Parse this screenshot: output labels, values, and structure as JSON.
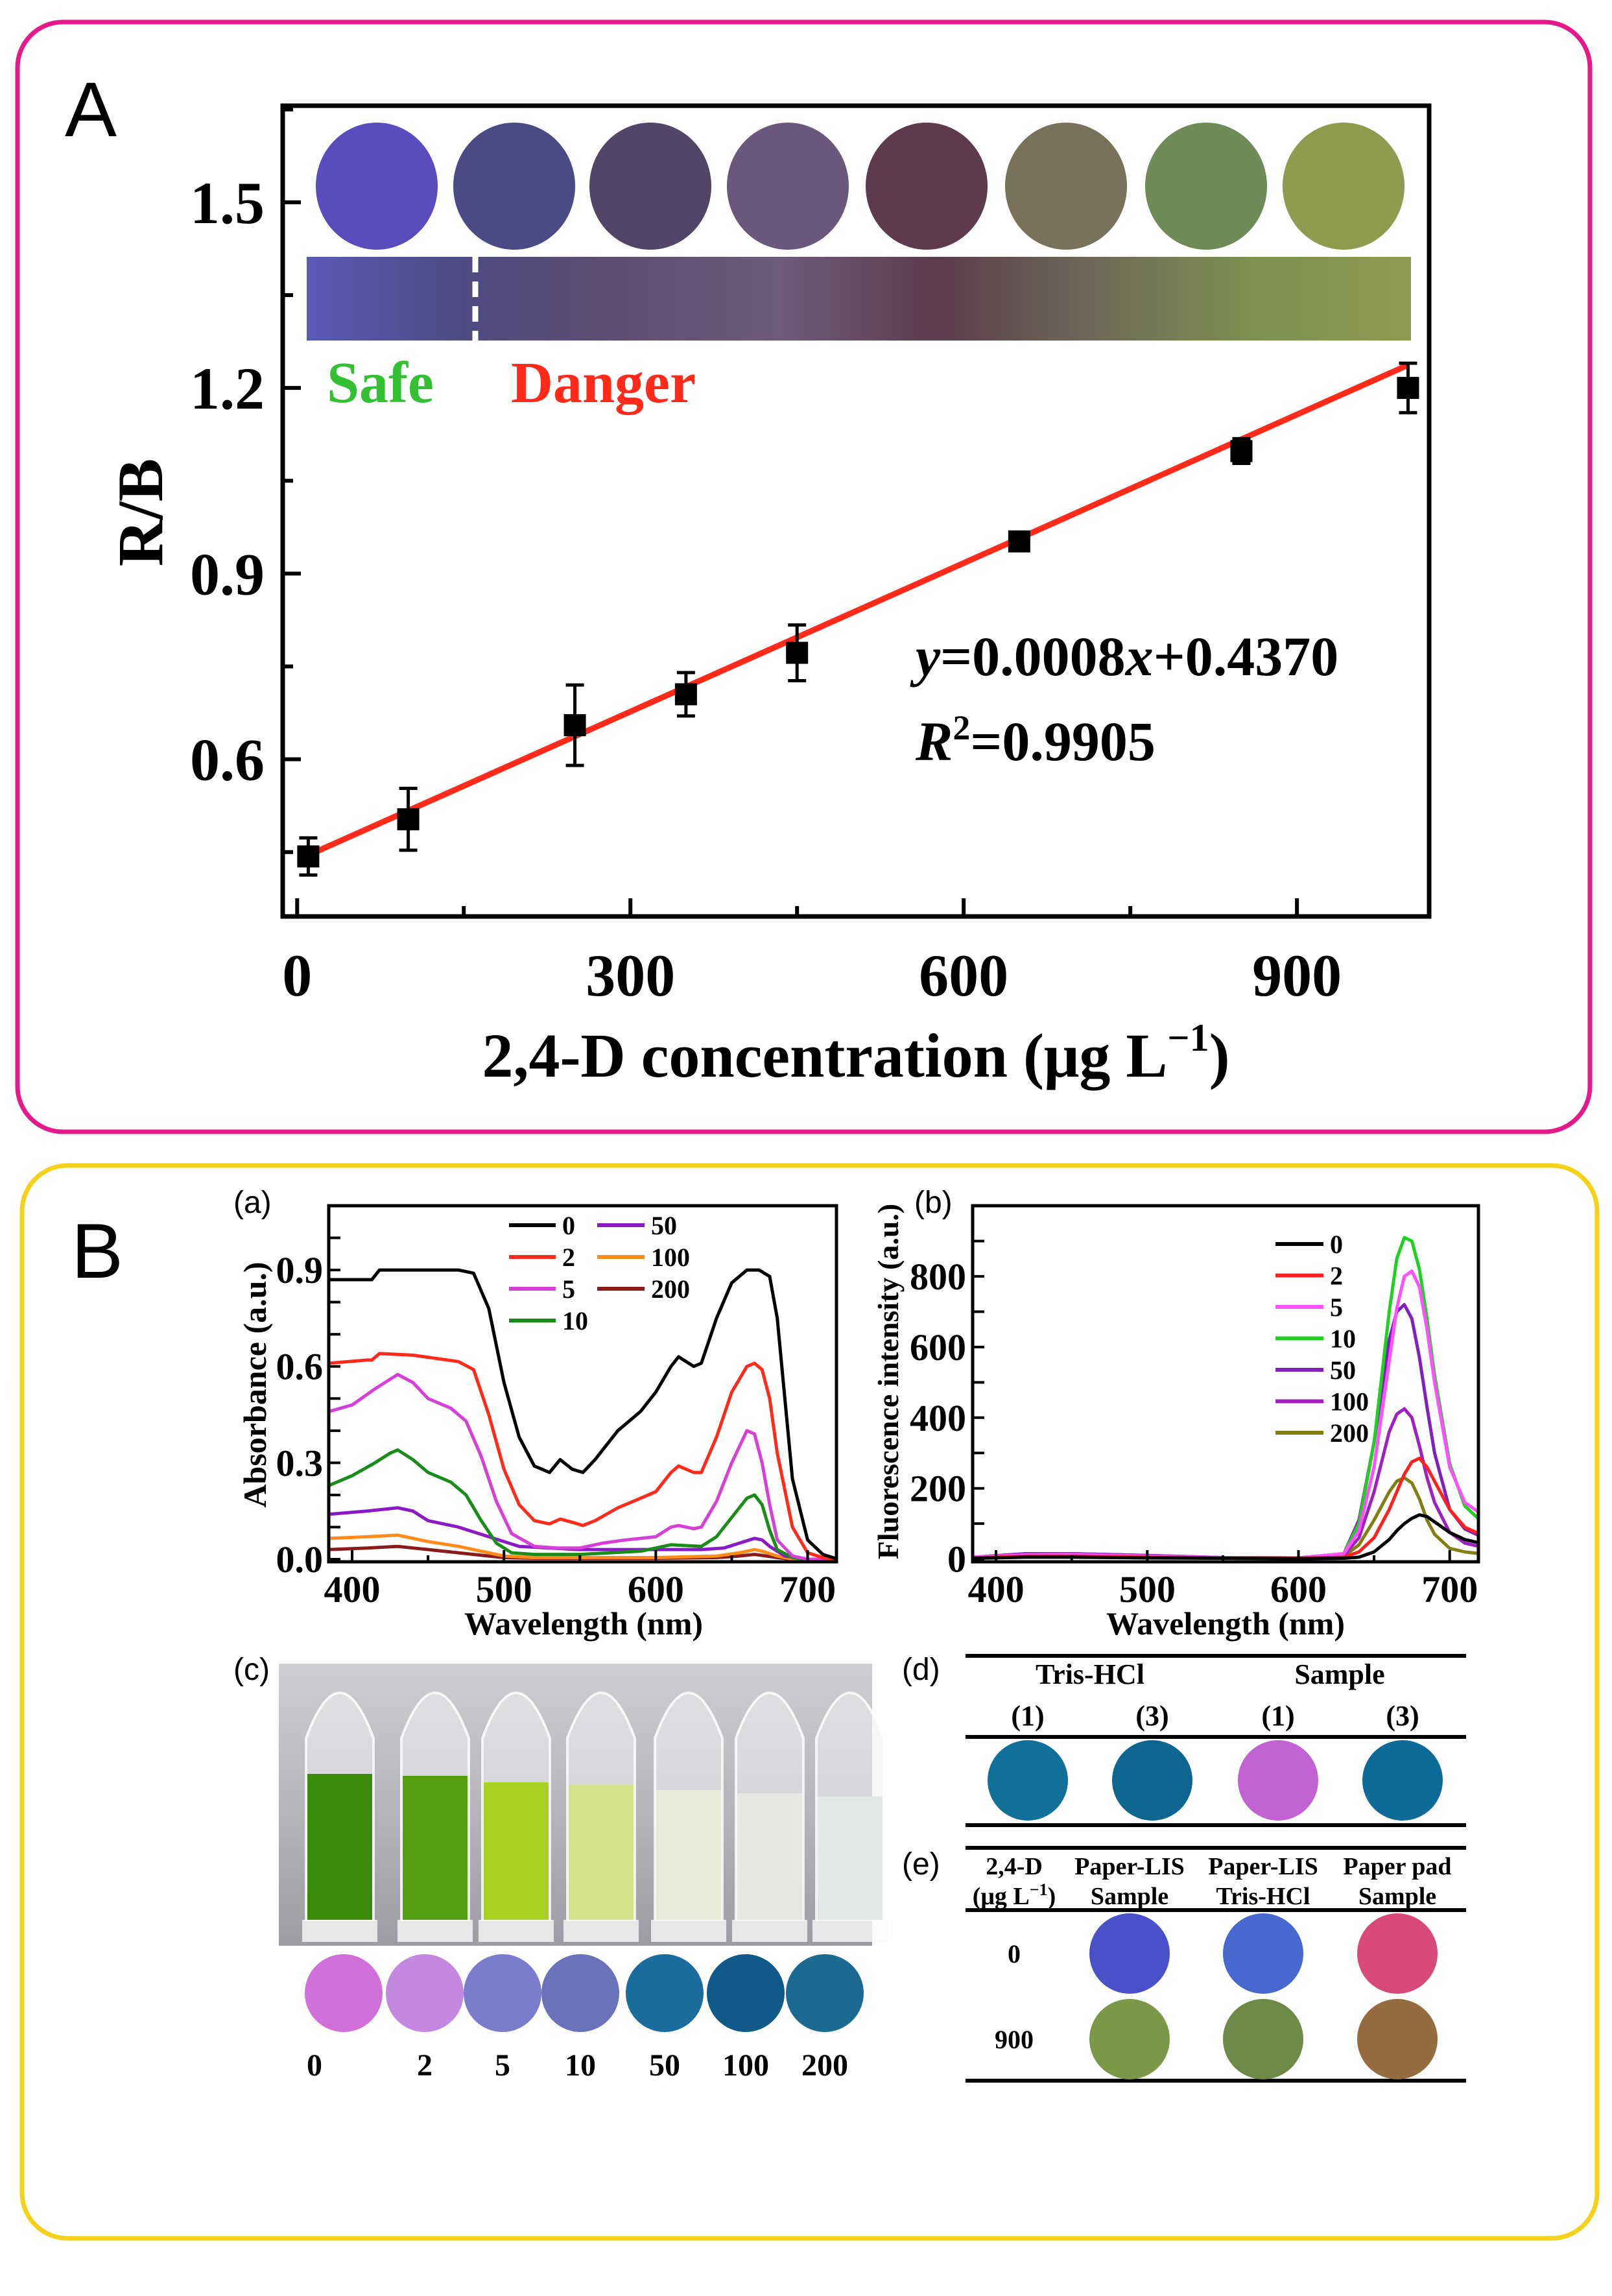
{
  "panel_A": {
    "label": "A"
  },
  "panel_B": {
    "label": "B",
    "sub_a": "(a)",
    "sub_b": "(b)",
    "sub_c": "(c)",
    "sub_d": "(d)",
    "sub_e": "(e)"
  },
  "colors": {
    "panel_A_border": "#e5198a",
    "panel_B_border": "#f5d21a"
  },
  "chart_data": [
    {
      "id": "A",
      "type": "scatter",
      "title": "",
      "ylabel": "R/B",
      "xlabel_parts": {
        "main": "2,4-D concentration (μg L",
        "sup": "−1",
        "end": ")"
      },
      "xlim": [
        -13,
        1019
      ],
      "ylim": [
        0.346,
        1.656
      ],
      "xticks": [
        0,
        300,
        600,
        900
      ],
      "xtick_labels": [
        "0",
        "300",
        "600",
        "900"
      ],
      "yticks": [
        0.6,
        0.9,
        1.2,
        1.5
      ],
      "ytick_labels": [
        "0.6",
        "0.9",
        "1.2",
        "1.5"
      ],
      "x": [
        10,
        100,
        250,
        350,
        450,
        650,
        850,
        1000
      ],
      "y": [
        0.443,
        0.503,
        0.655,
        0.705,
        0.772,
        0.952,
        1.098,
        1.2
      ],
      "yerr": [
        0.03,
        0.05,
        0.065,
        0.035,
        0.045,
        0.01,
        0.02,
        0.04
      ],
      "fit": {
        "slope": 0.0008,
        "intercept": 0.437,
        "color": "#ff2a1a"
      },
      "equation": {
        "y": "y",
        "mid": "=0.0008",
        "x": "x",
        "rest": "+0.4370"
      },
      "r2": {
        "R": "R",
        "sup": "2",
        "rest": "=0.9905"
      },
      "swatches": [
        "#5a4cbc",
        "#4b4a84",
        "#524668",
        "#6b577c",
        "#5d3a4c",
        "#78715c",
        "#6f8c58",
        "#8e9c50"
      ],
      "gradient": [
        "#5a5ab8",
        "#4e4a80",
        "#5e4f72",
        "#6e5a7a",
        "#5c3c4c",
        "#6e6a58",
        "#7e9050",
        "#8e9a50"
      ],
      "safe_label": "Safe",
      "danger_label": "Danger",
      "safe_color": "#33c033",
      "danger_color": "#ff2a1a"
    },
    {
      "id": "a",
      "type": "line",
      "title": "",
      "xlabel": "Wavelength (nm)",
      "ylabel": "Absorbance (a.u.)",
      "xlim": [
        384.6,
        719
      ],
      "ylim": [
        -0.008,
        1.1
      ],
      "xticks": [
        400,
        500,
        600,
        700
      ],
      "xtick_labels": [
        "400",
        "500",
        "600",
        "700"
      ],
      "yticks": [
        0,
        0.3,
        0.6,
        0.9
      ],
      "ytick_labels": [
        "0.0",
        "0.3",
        "0.6",
        "0.9"
      ],
      "legend": "top-center",
      "series": [
        {
          "name": "0",
          "color": "#000000",
          "x": [
            385,
            410,
            413,
            418,
            440,
            470,
            480,
            490,
            500,
            510,
            520,
            530,
            537,
            545,
            552,
            560,
            575,
            590,
            600,
            610,
            615,
            625,
            630,
            640,
            650,
            660,
            668,
            675,
            680,
            685,
            690,
            700,
            710,
            720
          ],
          "y": [
            0.87,
            0.87,
            0.87,
            0.9,
            0.9,
            0.9,
            0.89,
            0.78,
            0.55,
            0.38,
            0.29,
            0.27,
            0.31,
            0.28,
            0.27,
            0.31,
            0.4,
            0.46,
            0.52,
            0.6,
            0.63,
            0.6,
            0.61,
            0.75,
            0.86,
            0.9,
            0.9,
            0.88,
            0.75,
            0.5,
            0.25,
            0.06,
            0.015,
            0.0
          ]
        },
        {
          "name": "2",
          "color": "#ff2a1a",
          "x": [
            385,
            410,
            413,
            418,
            440,
            470,
            480,
            490,
            500,
            510,
            520,
            530,
            537,
            545,
            552,
            560,
            575,
            590,
            600,
            610,
            615,
            625,
            630,
            640,
            650,
            660,
            665,
            670,
            675,
            680,
            690,
            700,
            710,
            720
          ],
          "y": [
            0.61,
            0.62,
            0.62,
            0.64,
            0.635,
            0.615,
            0.59,
            0.45,
            0.28,
            0.17,
            0.12,
            0.11,
            0.125,
            0.115,
            0.105,
            0.12,
            0.16,
            0.19,
            0.21,
            0.27,
            0.29,
            0.27,
            0.27,
            0.38,
            0.52,
            0.6,
            0.61,
            0.59,
            0.5,
            0.33,
            0.1,
            0.02,
            0.005,
            0
          ]
        },
        {
          "name": "5",
          "color": "#d640d6",
          "x": [
            385,
            400,
            415,
            425,
            430,
            440,
            450,
            465,
            475,
            485,
            495,
            505,
            520,
            535,
            550,
            565,
            580,
            600,
            610,
            615,
            625,
            630,
            640,
            650,
            660,
            665,
            670,
            675,
            680,
            690,
            700,
            720
          ],
          "y": [
            0.46,
            0.48,
            0.53,
            0.56,
            0.575,
            0.55,
            0.5,
            0.47,
            0.43,
            0.32,
            0.18,
            0.08,
            0.04,
            0.035,
            0.035,
            0.05,
            0.06,
            0.07,
            0.1,
            0.105,
            0.095,
            0.1,
            0.18,
            0.3,
            0.4,
            0.39,
            0.3,
            0.17,
            0.06,
            0.01,
            0,
            0
          ]
        },
        {
          "name": "10",
          "color": "#1a8c1a",
          "x": [
            385,
            400,
            415,
            425,
            430,
            440,
            450,
            465,
            475,
            485,
            495,
            505,
            520,
            535,
            550,
            570,
            590,
            610,
            630,
            640,
            650,
            660,
            665,
            670,
            675,
            680,
            690,
            700,
            720
          ],
          "y": [
            0.23,
            0.26,
            0.3,
            0.33,
            0.34,
            0.31,
            0.27,
            0.24,
            0.2,
            0.12,
            0.05,
            0.02,
            0.015,
            0.015,
            0.015,
            0.02,
            0.025,
            0.045,
            0.04,
            0.07,
            0.13,
            0.19,
            0.2,
            0.17,
            0.09,
            0.03,
            0.005,
            0,
            0
          ]
        },
        {
          "name": "50",
          "color": "#8a1ac8",
          "x": [
            385,
            410,
            430,
            440,
            450,
            470,
            490,
            510,
            530,
            550,
            580,
            610,
            630,
            645,
            655,
            665,
            670,
            675,
            685,
            700,
            720
          ],
          "y": [
            0.14,
            0.15,
            0.16,
            0.15,
            0.12,
            0.1,
            0.07,
            0.04,
            0.035,
            0.03,
            0.03,
            0.03,
            0.03,
            0.035,
            0.05,
            0.065,
            0.06,
            0.04,
            0.01,
            0,
            0
          ]
        },
        {
          "name": "100",
          "color": "#ff8c1a",
          "x": [
            385,
            410,
            430,
            440,
            450,
            470,
            490,
            500,
            520,
            550,
            600,
            640,
            655,
            665,
            670,
            680,
            690,
            720
          ],
          "y": [
            0.065,
            0.07,
            0.075,
            0.065,
            0.055,
            0.04,
            0.02,
            0.01,
            0.005,
            0.005,
            0.005,
            0.01,
            0.02,
            0.03,
            0.025,
            0.01,
            0,
            0
          ]
        },
        {
          "name": "200",
          "color": "#8b1a1a",
          "x": [
            385,
            410,
            430,
            440,
            450,
            470,
            490,
            500,
            520,
            600,
            640,
            655,
            665,
            670,
            680,
            690,
            720
          ],
          "y": [
            0.03,
            0.035,
            0.04,
            0.035,
            0.03,
            0.02,
            0.01,
            0.005,
            0.003,
            0.003,
            0.005,
            0.01,
            0.015,
            0.012,
            0.005,
            0,
            0
          ]
        }
      ]
    },
    {
      "id": "b",
      "type": "line",
      "title": "",
      "xlabel": "Wavelength (nm)",
      "ylabel": "Fluorescence intensity (a.u.)",
      "xlim": [
        384.5,
        719
      ],
      "ylim": [
        -8,
        1000
      ],
      "xticks": [
        400,
        500,
        600,
        700
      ],
      "xtick_labels": [
        "400",
        "500",
        "600",
        "700"
      ],
      "yticks": [
        0,
        200,
        400,
        600,
        800
      ],
      "ytick_labels": [
        "0",
        "200",
        "400",
        "600",
        "800"
      ],
      "legend": "top-right",
      "x": [
        385,
        420,
        450,
        500,
        550,
        600,
        630,
        640,
        650,
        660,
        665,
        670,
        675,
        680,
        685,
        690,
        700,
        710,
        720
      ],
      "series": [
        {
          "name": "0",
          "color": "#000000",
          "y": [
            2,
            5,
            5,
            3,
            2,
            1,
            2,
            5,
            20,
            55,
            80,
            100,
            115,
            125,
            120,
            105,
            75,
            55,
            45
          ]
        },
        {
          "name": "2",
          "color": "#ff2020",
          "y": [
            3,
            8,
            8,
            5,
            3,
            2,
            5,
            20,
            60,
            140,
            190,
            240,
            275,
            285,
            260,
            220,
            140,
            90,
            70
          ]
        },
        {
          "name": "5",
          "color": "#ff50ff",
          "y": [
            5,
            12,
            13,
            8,
            4,
            3,
            15,
            80,
            260,
            560,
            710,
            800,
            815,
            770,
            650,
            500,
            260,
            160,
            130
          ]
        },
        {
          "name": "10",
          "color": "#20d020",
          "y": [
            4,
            10,
            10,
            6,
            3,
            3,
            15,
            100,
            330,
            700,
            850,
            910,
            900,
            820,
            680,
            520,
            270,
            150,
            110
          ]
        },
        {
          "name": "50",
          "color": "#8020c0",
          "y": [
            5,
            15,
            15,
            10,
            4,
            3,
            15,
            110,
            330,
            620,
            700,
            720,
            680,
            570,
            430,
            300,
            140,
            85,
            65
          ]
        },
        {
          "name": "100",
          "color": "#a020c0",
          "y": [
            5,
            15,
            15,
            10,
            4,
            3,
            10,
            60,
            190,
            360,
            410,
            425,
            400,
            320,
            230,
            160,
            75,
            45,
            35
          ]
        },
        {
          "name": "200",
          "color": "#808010",
          "y": [
            3,
            6,
            6,
            4,
            2,
            2,
            8,
            40,
            110,
            190,
            220,
            230,
            215,
            170,
            110,
            70,
            30,
            20,
            15
          ]
        }
      ]
    }
  ],
  "panel_c": {
    "labels": [
      "0",
      "2",
      "5",
      "10",
      "50",
      "100",
      "200"
    ],
    "liquid_colors": [
      "#3c8c0c",
      "#54a012",
      "#a8d222",
      "#d2e288",
      "#e6ead6",
      "#e4e8e0",
      "#e2e6e4"
    ],
    "spot_colors": [
      "#d070d8",
      "#c488e0",
      "#7a7ccc",
      "#6a72ba",
      "#1a6c9c",
      "#0f5a88",
      "#1a6a92"
    ]
  },
  "panel_d": {
    "headers": [
      "Tris-HCl",
      "Sample"
    ],
    "subheaders": [
      "(1)",
      "(3)",
      "(1)",
      "(3)"
    ],
    "spot_colors": [
      "#10709a",
      "#0e6590",
      "#c262d2",
      "#0e6a98"
    ]
  },
  "panel_e": {
    "col0": [
      "2,4-D",
      "(μg L",
      "−1",
      ")"
    ],
    "columns": [
      [
        "Paper-LIS",
        "Sample"
      ],
      [
        "Paper-LIS",
        "Tris-HCl"
      ],
      [
        "Paper pad",
        "Sample"
      ]
    ],
    "rows": [
      {
        "label": "0",
        "colors": [
          "#4a50c8",
          "#4868d0",
          "#d84878"
        ]
      },
      {
        "label": "900",
        "colors": [
          "#7a9848",
          "#6e8a48",
          "#946c40"
        ]
      }
    ]
  }
}
